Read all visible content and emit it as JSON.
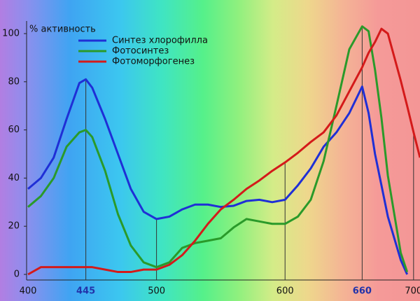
{
  "chart_data": {
    "type": "line",
    "ylabel": "% активность",
    "x": [
      400,
      410,
      420,
      430,
      440,
      445,
      450,
      460,
      470,
      480,
      490,
      500,
      510,
      520,
      530,
      540,
      550,
      560,
      570,
      580,
      590,
      600,
      610,
      620,
      630,
      640,
      650,
      660,
      665,
      670,
      675,
      680,
      690,
      695,
      700,
      705
    ],
    "series": [
      {
        "name": "Синтез хлорофилла",
        "color": "#1f2fd6",
        "values": [
          35.5,
          40,
          48.5,
          64.5,
          79.5,
          81,
          77.5,
          64.5,
          50,
          35.5,
          26,
          23,
          24,
          27,
          29,
          29,
          28,
          28.5,
          30.5,
          31,
          30,
          31,
          37,
          44,
          53,
          59,
          67,
          78,
          67,
          50,
          37,
          24,
          6,
          0,
          null,
          null
        ]
      },
      {
        "name": "Фотосинтез",
        "color": "#2a9a2a",
        "values": [
          28,
          32.5,
          40,
          53,
          59,
          60,
          57,
          43,
          25,
          12,
          5,
          3,
          5,
          11,
          13,
          14,
          15,
          19.5,
          23,
          22,
          21,
          21,
          24,
          31,
          47,
          70,
          93.5,
          103,
          101,
          85,
          65,
          41,
          9,
          1,
          null,
          null
        ]
      },
      {
        "name": "Фотоморфогенез",
        "color": "#d41a1a",
        "values": [
          0,
          3,
          3,
          3,
          3,
          3,
          3,
          2,
          1,
          1,
          2,
          2,
          4,
          8,
          14,
          21,
          27,
          31,
          35.5,
          39,
          43,
          46.5,
          50.5,
          55,
          59,
          66,
          76,
          86,
          92,
          96.5,
          102,
          100,
          80.5,
          70,
          59,
          48.5
        ]
      }
    ],
    "xlim": [
      400,
      705
    ],
    "xticks": [
      400,
      445,
      500,
      600,
      660,
      700
    ],
    "ylim": [
      0,
      110
    ],
    "yticks": [
      0,
      20,
      40,
      60,
      80,
      100
    ],
    "legend": "top-left"
  }
}
